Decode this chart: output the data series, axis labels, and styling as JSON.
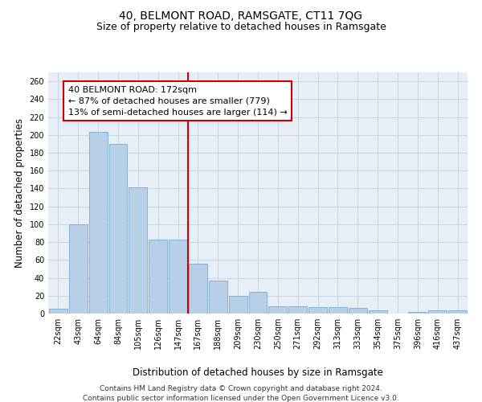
{
  "title": "40, BELMONT ROAD, RAMSGATE, CT11 7QG",
  "subtitle": "Size of property relative to detached houses in Ramsgate",
  "xlabel": "Distribution of detached houses by size in Ramsgate",
  "ylabel": "Number of detached properties",
  "categories": [
    "22sqm",
    "43sqm",
    "64sqm",
    "84sqm",
    "105sqm",
    "126sqm",
    "147sqm",
    "167sqm",
    "188sqm",
    "209sqm",
    "230sqm",
    "250sqm",
    "271sqm",
    "292sqm",
    "313sqm",
    "333sqm",
    "354sqm",
    "375sqm",
    "396sqm",
    "416sqm",
    "437sqm"
  ],
  "values": [
    5,
    100,
    203,
    190,
    141,
    83,
    83,
    56,
    37,
    20,
    24,
    8,
    8,
    7,
    7,
    6,
    4,
    0,
    2,
    4,
    4
  ],
  "bar_color": "#b8cfe8",
  "bar_edge_color": "#7aaad0",
  "grid_color": "#c8d4e4",
  "vline_x_index": 7,
  "vline_color": "#cc0000",
  "annotation_text": "40 BELMONT ROAD: 172sqm\n← 87% of detached houses are smaller (779)\n13% of semi-detached houses are larger (114) →",
  "annotation_box_color": "#ffffff",
  "annotation_box_edge_color": "#cc0000",
  "ylim": [
    0,
    270
  ],
  "yticks": [
    0,
    20,
    40,
    60,
    80,
    100,
    120,
    140,
    160,
    180,
    200,
    220,
    240,
    260
  ],
  "footnote1": "Contains HM Land Registry data © Crown copyright and database right 2024.",
  "footnote2": "Contains public sector information licensed under the Open Government Licence v3.0.",
  "title_fontsize": 10,
  "subtitle_fontsize": 9,
  "tick_fontsize": 7,
  "ylabel_fontsize": 8.5,
  "xlabel_fontsize": 8.5,
  "annotation_fontsize": 8,
  "footnote_fontsize": 6.5,
  "bg_color": "#e8eef6"
}
